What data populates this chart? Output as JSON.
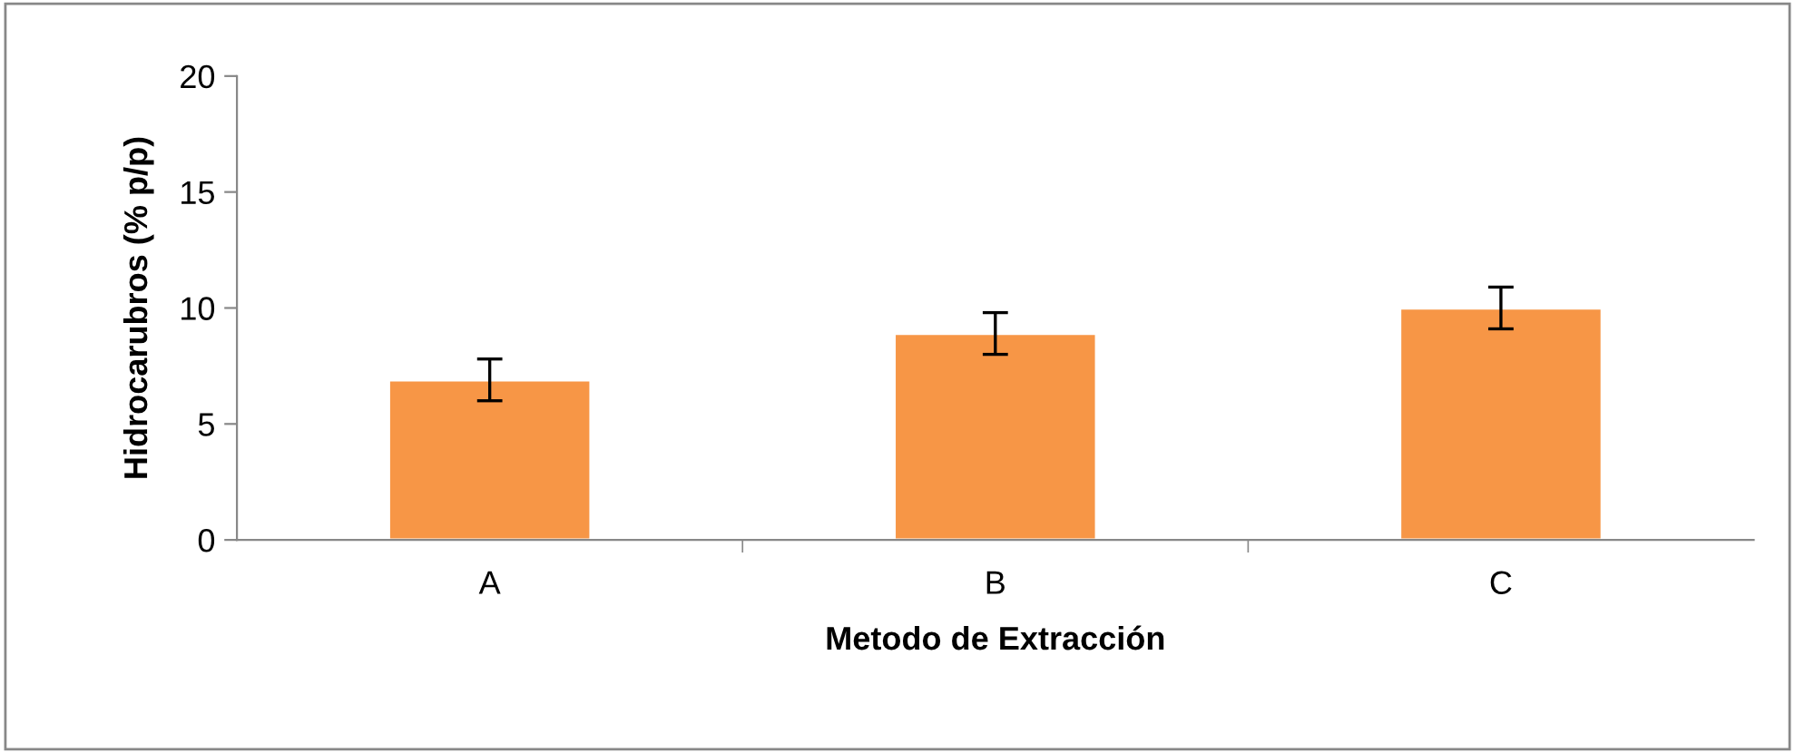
{
  "chart_data": {
    "type": "bar",
    "xlabel": "Metodo de Extracción",
    "ylabel": "Hidrocarubros (% p/p)",
    "categories": [
      "A",
      "B",
      "C"
    ],
    "values": [
      6.9,
      8.9,
      10
    ],
    "errors": [
      0.9,
      0.9,
      0.9
    ],
    "color": "#f79646",
    "ylim": [
      0,
      20
    ],
    "yticks": [
      0,
      5,
      10,
      15,
      20
    ],
    "grid": false,
    "legend": false
  }
}
